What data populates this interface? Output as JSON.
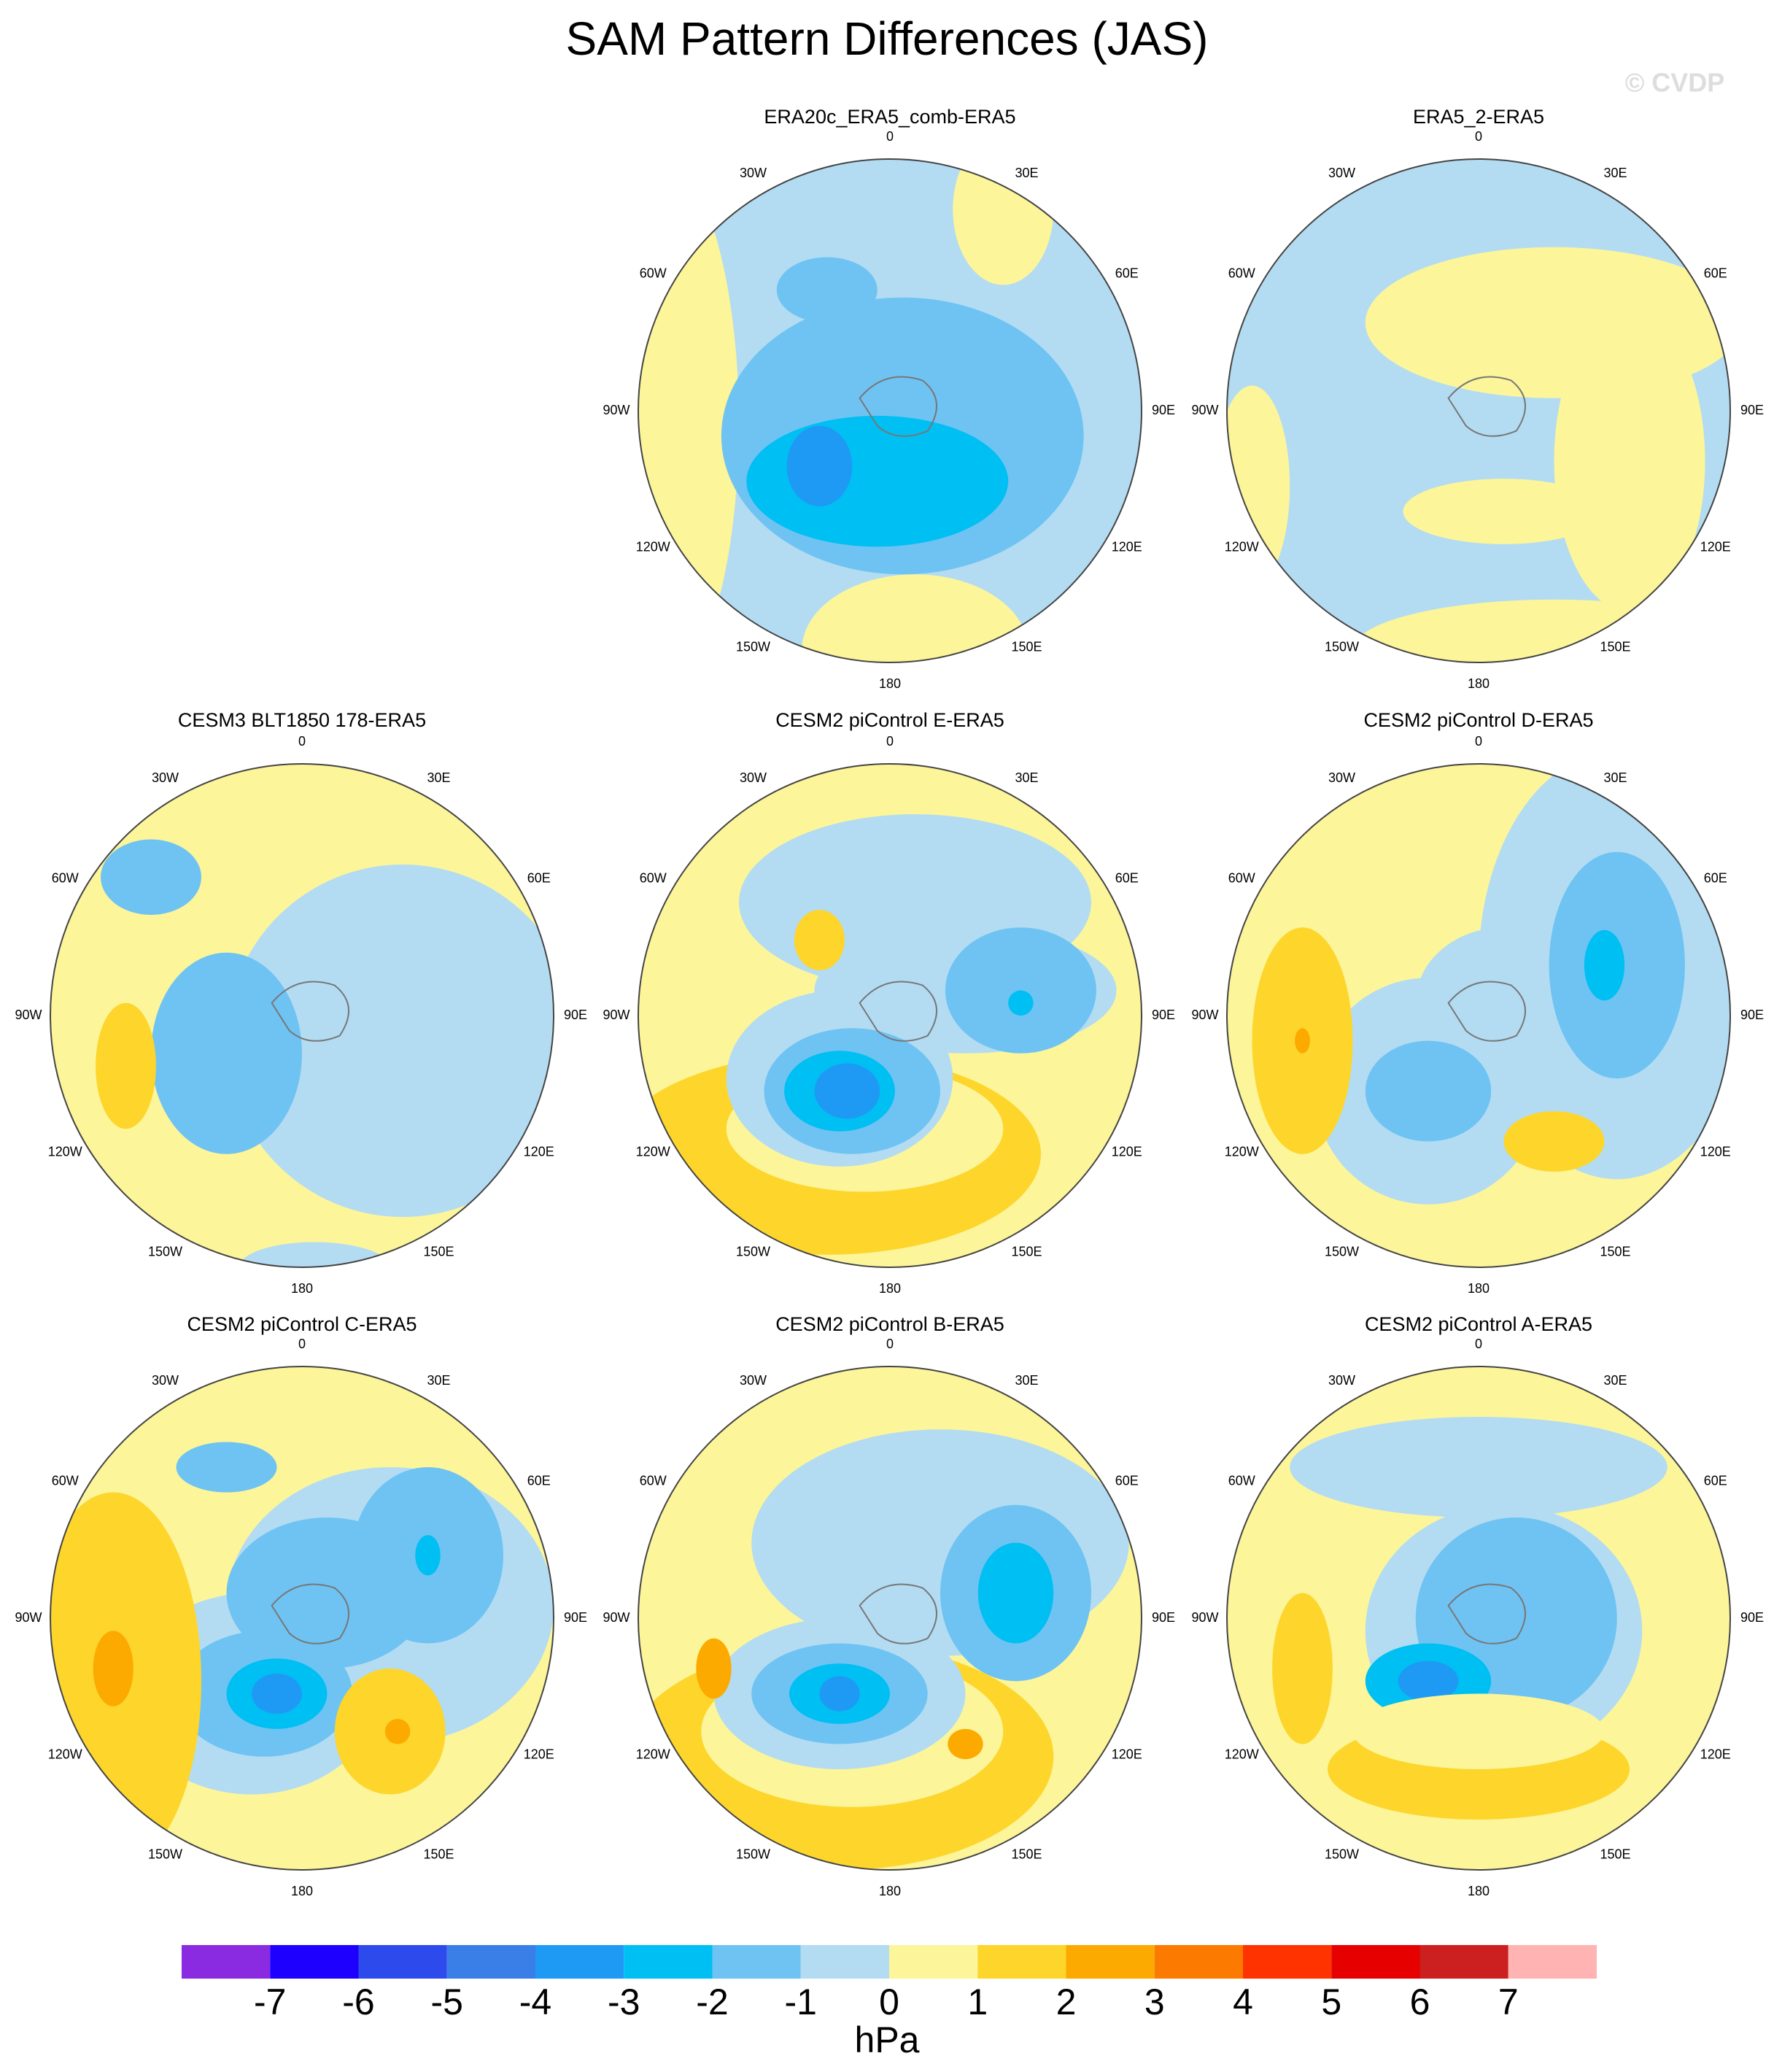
{
  "title": "SAM Pattern Differences (JAS)",
  "watermark": "© CVDP",
  "panels": [
    {
      "title": "ERA20c_ERA5_comb-ERA5"
    },
    {
      "title": "ERA5_2-ERA5"
    },
    {
      "title": "CESM3 BLT1850 178-ERA5"
    },
    {
      "title": "CESM2 piControl E-ERA5"
    },
    {
      "title": "CESM2 piControl D-ERA5"
    },
    {
      "title": "CESM2 piControl C-ERA5"
    },
    {
      "title": "CESM2 piControl B-ERA5"
    },
    {
      "title": "CESM2 piControl A-ERA5"
    }
  ],
  "longitude_labels": [
    "0",
    "30E",
    "60E",
    "90E",
    "120E",
    "150E",
    "180",
    "150W",
    "120W",
    "90W",
    "60W",
    "30W"
  ],
  "colorbar": {
    "levels": [
      -7,
      -6,
      -5,
      -4,
      -3,
      -2,
      -1,
      0,
      1,
      2,
      3,
      4,
      5,
      6,
      7
    ],
    "colors": [
      "#8a2be2",
      "#1e00ff",
      "#2d4bed",
      "#3a7ee8",
      "#1e9af5",
      "#00bff3",
      "#6fc3f2",
      "#b3dcf2",
      "#fcf59a",
      "#fdd52b",
      "#fcaa00",
      "#fc7a00",
      "#ff3300",
      "#e60000",
      "#cc1f1f",
      "#ffb3b3"
    ],
    "unit": "hPa"
  }
}
